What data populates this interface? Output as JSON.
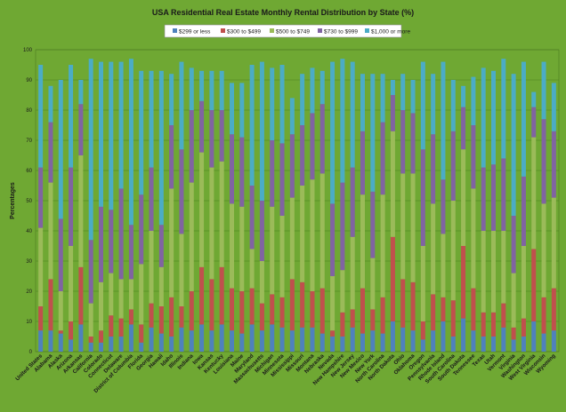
{
  "chart_data": {
    "type": "bar",
    "stacked": true,
    "title": "USA Residential Real Estate Monthly Rental Distribution by State (%)",
    "xlabel": "",
    "ylabel": "Percentages",
    "ylim": [
      0,
      100
    ],
    "yticks": [
      0,
      10,
      20,
      30,
      40,
      50,
      60,
      70,
      80,
      90,
      100
    ],
    "grid": true,
    "legend_position": "top",
    "categories": [
      "United States",
      "Alabama",
      "Alaska",
      "Arizona",
      "Arkansas",
      "California",
      "Colorado",
      "Connecticut",
      "Delaware",
      "District of Columbia",
      "Florida",
      "Georgia",
      "Hawaii",
      "Idaho",
      "Illinois",
      "Indiana",
      "Iowa",
      "Kansas",
      "Kentucky",
      "Louisiana",
      "Maine",
      "Maryland",
      "Massachusetts",
      "Michigan",
      "Minnesota",
      "Mississippi",
      "Missouri",
      "Montana",
      "Nebraska",
      "Nevada",
      "New Hampshire",
      "New Jersey",
      "New Mexico",
      "New York",
      "North Carolina",
      "North Dakota",
      "Ohio",
      "Oklahoma",
      "Oregon",
      "Pennsylvania",
      "Rhode Island",
      "South Carolina",
      "South Dakota",
      "Tennessee",
      "Texas",
      "Utah",
      "Vermont",
      "Virginia",
      "Washington",
      "West Virginia",
      "Wisconsin",
      "Wyoming"
    ],
    "series": [
      {
        "name": "$299 or less",
        "color": "#4f81bd",
        "values": [
          7,
          7,
          6,
          4,
          9,
          3,
          3,
          5,
          5,
          9,
          3,
          8,
          6,
          5,
          8,
          7,
          9,
          7,
          9,
          7,
          6,
          9,
          7,
          9,
          8,
          7,
          8,
          8,
          6,
          5,
          5,
          8,
          6,
          7,
          6,
          10,
          8,
          7,
          4,
          7,
          10,
          5,
          11,
          7,
          5,
          5,
          8,
          4,
          5,
          10,
          6,
          7
        ]
      },
      {
        "name": "$300 to $499",
        "color": "#c0504d",
        "values": [
          8,
          17,
          1,
          6,
          19,
          2,
          4,
          7,
          6,
          5,
          6,
          8,
          9,
          13,
          7,
          13,
          19,
          17,
          19,
          14,
          14,
          12,
          9,
          10,
          10,
          17,
          15,
          12,
          15,
          2,
          8,
          6,
          15,
          7,
          12,
          28,
          16,
          16,
          6,
          12,
          8,
          12,
          24,
          14,
          8,
          8,
          8,
          4,
          6,
          24,
          12,
          14
        ]
      },
      {
        "name": "$500 to $749",
        "color": "#9bbb59",
        "values": [
          26,
          32,
          13,
          25,
          37,
          11,
          16,
          14,
          13,
          10,
          20,
          24,
          13,
          36,
          24,
          36,
          38,
          37,
          35,
          28,
          28,
          13,
          14,
          29,
          27,
          27,
          32,
          37,
          38,
          18,
          14,
          24,
          31,
          17,
          34,
          35,
          35,
          36,
          25,
          30,
          21,
          33,
          32,
          33,
          27,
          27,
          24,
          18,
          24,
          37,
          31,
          30
        ]
      },
      {
        "name": "$730 to $999",
        "color": "#8064a2",
        "values": [
          20,
          20,
          24,
          26,
          17,
          21,
          25,
          21,
          30,
          18,
          23,
          21,
          14,
          21,
          28,
          24,
          17,
          19,
          17,
          23,
          23,
          21,
          20,
          22,
          24,
          21,
          20,
          22,
          23,
          24,
          29,
          23,
          21,
          22,
          24,
          12,
          21,
          20,
          32,
          23,
          18,
          23,
          14,
          21,
          21,
          22,
          24,
          19,
          23,
          10,
          28,
          22
        ]
      },
      {
        "name": "$1,000 or more",
        "color": "#4bacc6",
        "values": [
          34,
          12,
          46,
          34,
          8,
          60,
          48,
          49,
          42,
          55,
          41,
          32,
          51,
          17,
          29,
          14,
          10,
          13,
          13,
          17,
          18,
          40,
          46,
          24,
          26,
          12,
          17,
          15,
          11,
          47,
          41,
          35,
          19,
          39,
          16,
          5,
          12,
          11,
          29,
          20,
          39,
          17,
          7,
          16,
          33,
          31,
          33,
          47,
          38,
          5,
          19,
          16
        ]
      }
    ]
  }
}
